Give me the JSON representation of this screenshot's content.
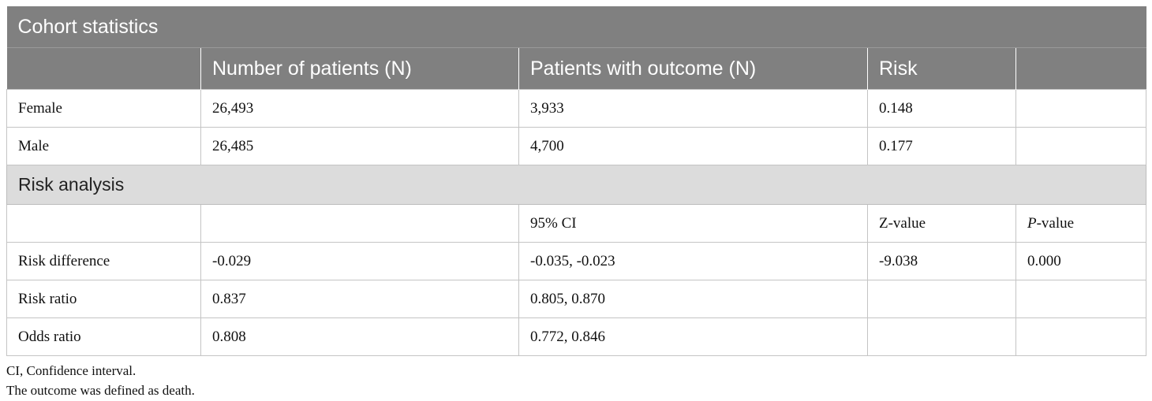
{
  "table": {
    "cohort_title": "Cohort statistics",
    "cohort_headers": [
      "",
      "Number of patients (N)",
      "Patients with outcome (N)",
      "Risk",
      ""
    ],
    "cohort_rows": [
      [
        "Female",
        "26,493",
        "3,933",
        "0.148",
        ""
      ],
      [
        "Male",
        "26,485",
        "4,700",
        "0.177",
        ""
      ]
    ],
    "risk_title": "Risk analysis",
    "risk_headers": [
      "",
      "",
      "95% CI",
      "Z-value",
      "-value"
    ],
    "risk_header_p_italic": "P",
    "risk_rows": [
      [
        "Risk difference",
        "-0.029",
        "-0.035, -0.023",
        "-9.038",
        "0.000"
      ],
      [
        "Risk ratio",
        "0.837",
        "0.805, 0.870",
        "",
        ""
      ],
      [
        "Odds ratio",
        "0.808",
        "0.772, 0.846",
        "",
        ""
      ]
    ]
  },
  "footnotes": [
    "CI, Confidence interval.",
    "The outcome was defined as death."
  ]
}
